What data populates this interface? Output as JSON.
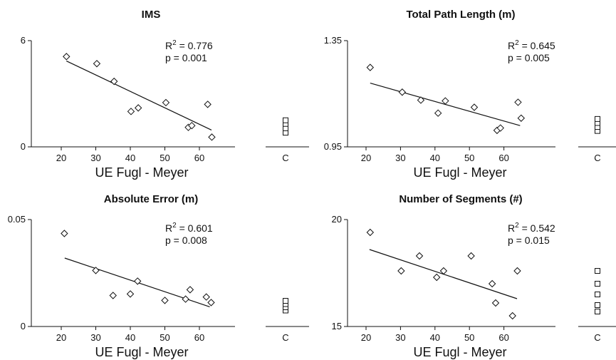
{
  "chart_data": [
    {
      "type": "scatter",
      "title": "IMS",
      "xlabel": "UE Fugl - Meyer",
      "ylabel": "",
      "xlim": [
        15,
        65
      ],
      "xticks": [
        "20",
        "30",
        "40",
        "50",
        "60"
      ],
      "ylim": [
        0,
        6
      ],
      "yticks": [
        "0",
        "6"
      ],
      "points": [
        [
          21.5,
          5.1
        ],
        [
          30.3,
          4.7
        ],
        [
          35.3,
          3.7
        ],
        [
          40.2,
          2.0
        ],
        [
          42.3,
          2.2
        ],
        [
          50.3,
          2.5
        ],
        [
          56.8,
          1.1
        ],
        [
          57.8,
          1.2
        ],
        [
          62.4,
          2.4
        ],
        [
          63.6,
          0.55
        ]
      ],
      "fit": [
        [
          21.5,
          4.85
        ],
        [
          63.5,
          0.95
        ]
      ],
      "r2_text": "0.776",
      "p_text": "p = 0.001",
      "control_label": "C",
      "control_values": [
        0.8,
        1.05,
        1.3,
        1.5
      ]
    },
    {
      "type": "scatter",
      "title": "Total Path Length (m)",
      "xlabel": "UE Fugl - Meyer",
      "ylabel": "",
      "xlim": [
        15,
        67
      ],
      "xticks": [
        "20",
        "30",
        "40",
        "50",
        "60"
      ],
      "ylim": [
        0.95,
        1.35
      ],
      "yticks": [
        "0.95",
        "1.35"
      ],
      "points": [
        [
          21.2,
          1.249
        ],
        [
          30.5,
          1.156
        ],
        [
          35.9,
          1.126
        ],
        [
          40.9,
          1.077
        ],
        [
          43.0,
          1.123
        ],
        [
          51.4,
          1.099
        ],
        [
          58.0,
          1.012
        ],
        [
          59.0,
          1.021
        ],
        [
          64.1,
          1.118
        ],
        [
          65.0,
          1.058
        ]
      ],
      "fit": [
        [
          21.2,
          1.19
        ],
        [
          64.7,
          1.03
        ]
      ],
      "r2_text": "0.645",
      "p_text": "p = 0.005",
      "control_label": "C",
      "control_values": [
        1.01,
        1.025,
        1.04,
        1.055
      ]
    },
    {
      "type": "scatter",
      "title": "Absolute Error (m)",
      "xlabel": "UE Fugl - Meyer",
      "ylabel": "",
      "xlim": [
        15,
        65
      ],
      "xticks": [
        "20",
        "30",
        "40",
        "50",
        "60"
      ],
      "ylim": [
        0,
        0.05
      ],
      "yticks": [
        "0",
        "0.05"
      ],
      "points": [
        [
          20.9,
          0.0435
        ],
        [
          30.0,
          0.0262
        ],
        [
          35.0,
          0.0145
        ],
        [
          40.0,
          0.0152
        ],
        [
          42.1,
          0.0212
        ],
        [
          50.0,
          0.0122
        ],
        [
          56.0,
          0.0128
        ],
        [
          57.3,
          0.0172
        ],
        [
          62.0,
          0.0138
        ],
        [
          63.4,
          0.0112
        ]
      ],
      "fit": [
        [
          21.0,
          0.032
        ],
        [
          63.0,
          0.0092
        ]
      ],
      "r2_text": "0.601",
      "p_text": "p = 0.008",
      "control_label": "C",
      "control_values": [
        0.0075,
        0.009,
        0.0105,
        0.012
      ]
    },
    {
      "type": "scatter",
      "title": "Number of Segments (#)",
      "xlabel": "UE Fugl - Meyer",
      "ylabel": "",
      "xlim": [
        15,
        67
      ],
      "xticks": [
        "20",
        "30",
        "40",
        "50",
        "60"
      ],
      "ylim": [
        15,
        20
      ],
      "yticks": [
        "15",
        "20"
      ],
      "points": [
        [
          21.2,
          19.4
        ],
        [
          30.2,
          17.6
        ],
        [
          35.5,
          18.3
        ],
        [
          40.5,
          17.3
        ],
        [
          42.5,
          17.6
        ],
        [
          50.5,
          18.3
        ],
        [
          56.6,
          17.0
        ],
        [
          57.6,
          16.1
        ],
        [
          62.5,
          15.5
        ],
        [
          63.9,
          17.6
        ]
      ],
      "fit": [
        [
          21.0,
          18.6
        ],
        [
          63.8,
          16.3
        ]
      ],
      "r2_text": "0.542",
      "p_text": "p = 0.015",
      "control_label": "C",
      "control_values": [
        15.7,
        16.0,
        16.5,
        17.0,
        17.6
      ]
    }
  ]
}
